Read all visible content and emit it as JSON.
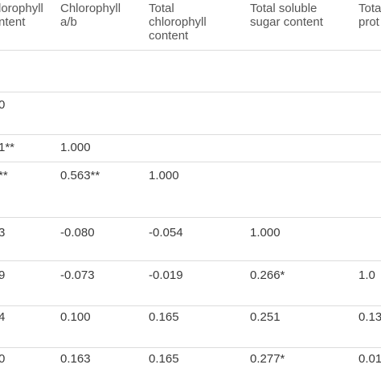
{
  "table": {
    "header": [
      [
        "lorophyll",
        "ntent"
      ],
      [
        "Chlorophyll",
        "a/b"
      ],
      [
        "Total",
        "chlorophyll",
        "content"
      ],
      [
        "Total soluble",
        "sugar content"
      ],
      [
        "Tota",
        "prot"
      ]
    ],
    "rows": [
      [
        "0"
      ],
      [
        "1**",
        "1.000"
      ],
      [
        "**",
        "0.563**",
        "1.000"
      ],
      [
        "3",
        "-0.080",
        "-0.054",
        "1.000"
      ],
      [
        "9",
        "-0.073",
        "-0.019",
        "0.266*",
        "1.0"
      ],
      [
        "4",
        "0.100",
        "0.165",
        "0.251",
        "0.13"
      ],
      [
        "0",
        "0.163",
        "0.165",
        "0.277*",
        "0.01"
      ]
    ]
  }
}
